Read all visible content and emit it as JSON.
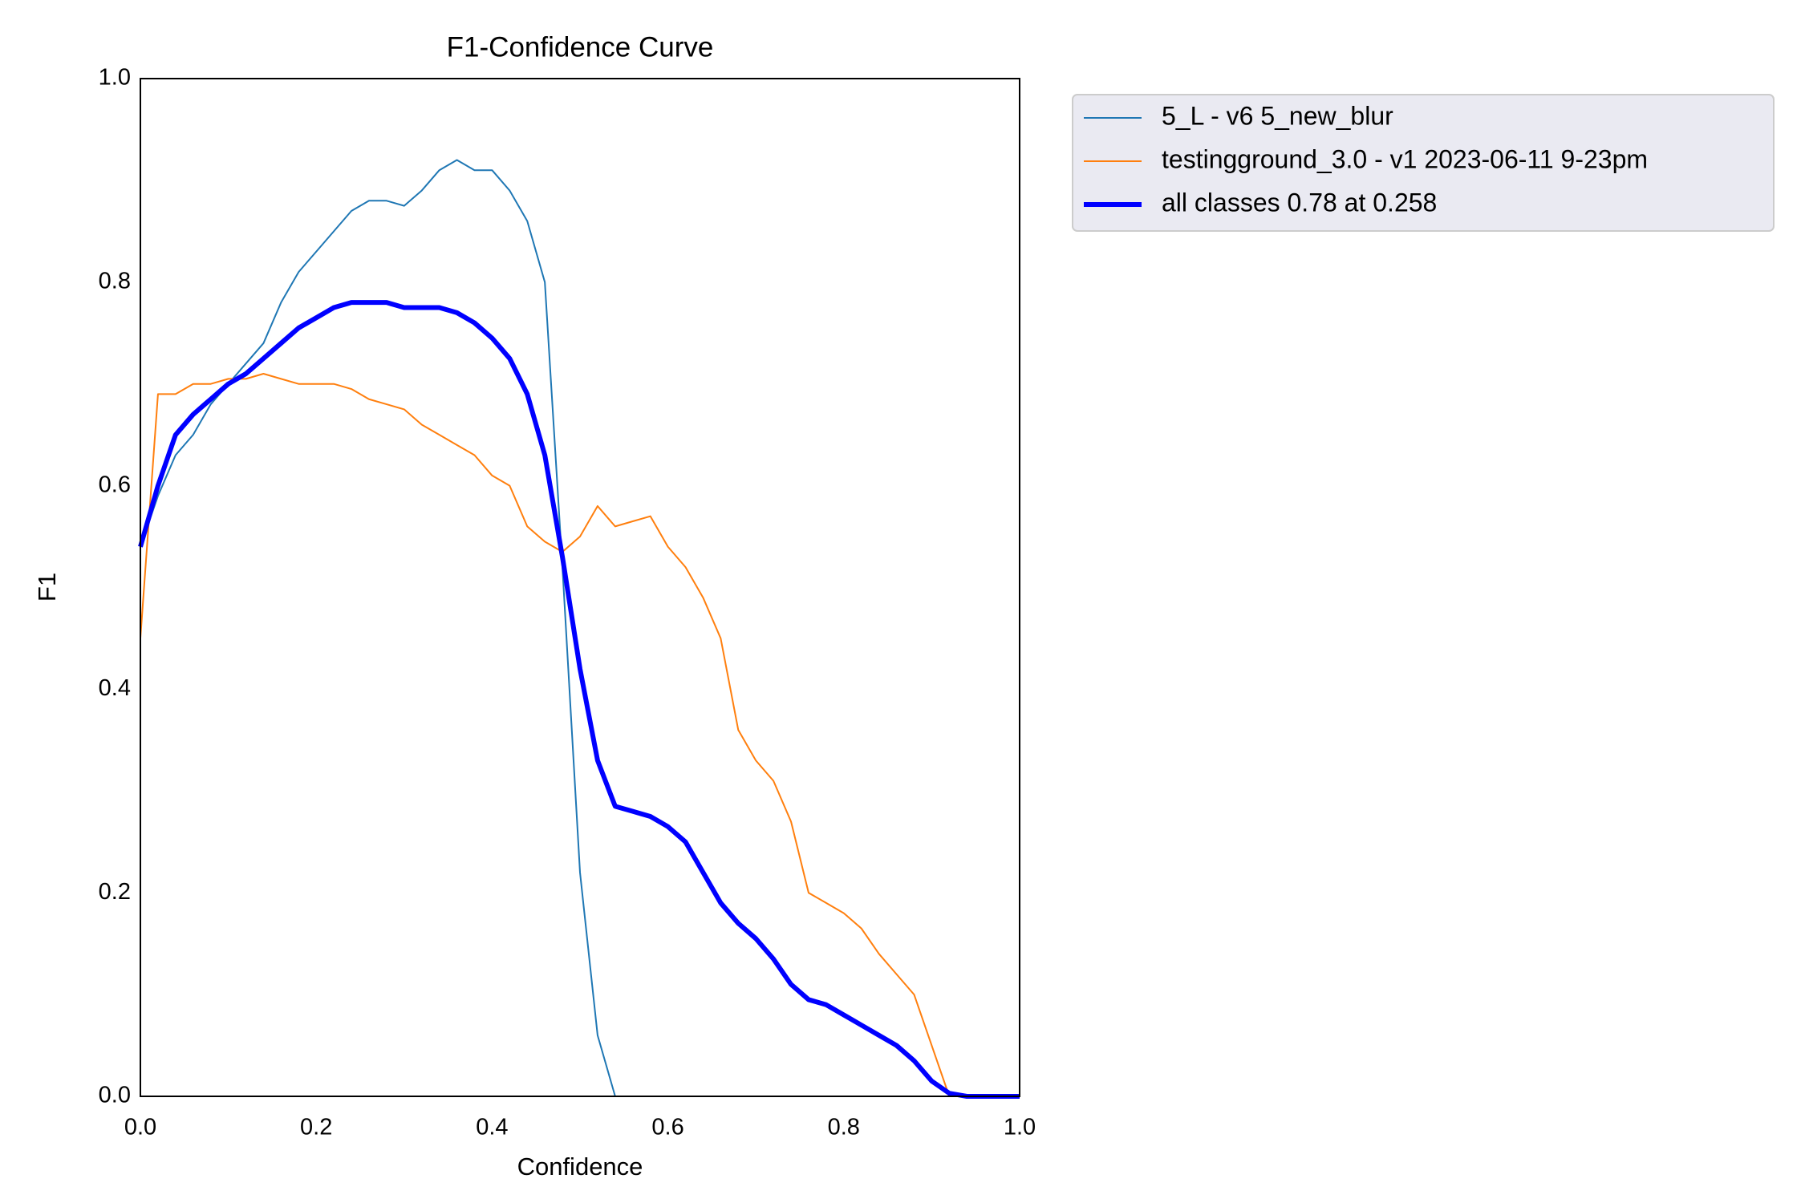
{
  "chart_data": {
    "type": "line",
    "title": "F1-Confidence Curve",
    "x_label": "Confidence",
    "y_label": "F1",
    "x": [
      0,
      0.02,
      0.04,
      0.06,
      0.08,
      0.1,
      0.12,
      0.14,
      0.16,
      0.18,
      0.2,
      0.22,
      0.24,
      0.26,
      0.28,
      0.3,
      0.32,
      0.34,
      0.36,
      0.38,
      0.4,
      0.42,
      0.44,
      0.46,
      0.48,
      0.5,
      0.52,
      0.54,
      0.56,
      0.58,
      0.6,
      0.62,
      0.64,
      0.66,
      0.68,
      0.7,
      0.72,
      0.74,
      0.76,
      0.78,
      0.8,
      0.82,
      0.84,
      0.86,
      0.88,
      0.9,
      0.92,
      0.94,
      0.96,
      0.98,
      1.0
    ],
    "series": [
      {
        "name": "5_L - v6 5_new_blur",
        "color": "#1f77b4",
        "width": 2,
        "values": [
          0.54,
          0.59,
          0.63,
          0.65,
          0.68,
          0.7,
          0.72,
          0.74,
          0.78,
          0.81,
          0.83,
          0.85,
          0.87,
          0.88,
          0.88,
          0.875,
          0.89,
          0.91,
          0.92,
          0.91,
          0.91,
          0.89,
          0.86,
          0.8,
          0.52,
          0.22,
          0.06,
          0,
          0,
          0,
          0,
          0,
          0,
          0,
          0,
          0,
          0,
          0,
          0,
          0,
          0,
          0,
          0,
          0,
          0,
          0,
          0,
          0,
          0,
          0,
          0
        ]
      },
      {
        "name": "testingground_3.0 - v1 2023-06-11 9-23pm",
        "color": "#ff7f0e",
        "width": 2,
        "values": [
          0.45,
          0.69,
          0.69,
          0.7,
          0.7,
          0.705,
          0.705,
          0.71,
          0.705,
          0.7,
          0.7,
          0.7,
          0.695,
          0.685,
          0.68,
          0.675,
          0.66,
          0.65,
          0.64,
          0.63,
          0.61,
          0.6,
          0.56,
          0.545,
          0.535,
          0.55,
          0.58,
          0.56,
          0.565,
          0.57,
          0.54,
          0.52,
          0.49,
          0.45,
          0.36,
          0.33,
          0.31,
          0.27,
          0.2,
          0.19,
          0.18,
          0.165,
          0.14,
          0.12,
          0.1,
          0.05,
          0,
          0,
          0,
          0,
          0
        ]
      },
      {
        "name": "all classes 0.78 at 0.258",
        "color": "#0000ff",
        "width": 6,
        "values": [
          0.54,
          0.6,
          0.65,
          0.67,
          0.685,
          0.7,
          0.71,
          0.725,
          0.74,
          0.755,
          0.765,
          0.775,
          0.78,
          0.78,
          0.78,
          0.775,
          0.775,
          0.775,
          0.77,
          0.76,
          0.745,
          0.725,
          0.69,
          0.63,
          0.53,
          0.42,
          0.33,
          0.285,
          0.28,
          0.275,
          0.265,
          0.25,
          0.22,
          0.19,
          0.17,
          0.155,
          0.135,
          0.11,
          0.095,
          0.09,
          0.08,
          0.07,
          0.06,
          0.05,
          0.035,
          0.015,
          0.003,
          0,
          0,
          0,
          0
        ]
      }
    ],
    "xlim": [
      0,
      1
    ],
    "ylim": [
      0,
      1
    ],
    "xticks": [
      {
        "value": 0,
        "label": "0.0"
      },
      0.2,
      0.4,
      0.6,
      0.8,
      {
        "value": 1,
        "label": "1.0"
      }
    ],
    "yticks": [
      {
        "value": 0,
        "label": "0.0"
      },
      0.2,
      0.4,
      0.6,
      0.8,
      {
        "value": 1,
        "label": "1.0"
      }
    ],
    "grid": false,
    "legend": "outside upper right"
  }
}
